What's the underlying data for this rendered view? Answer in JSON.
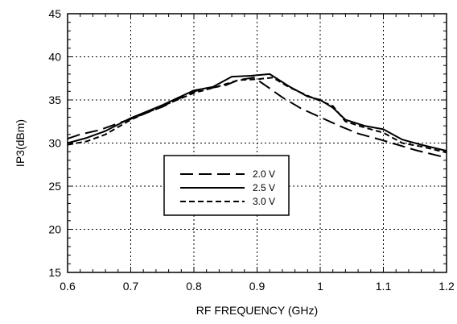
{
  "chart_data": {
    "type": "line",
    "title": "",
    "xlabel": "RF FREQUENCY (GHz)",
    "ylabel": "IP3(dBm)",
    "xlim": [
      0.6,
      1.2
    ],
    "ylim": [
      15,
      45
    ],
    "xticks": [
      0.6,
      0.7,
      0.8,
      0.9,
      1,
      1.1,
      1.2
    ],
    "yticks": [
      15,
      20,
      25,
      30,
      35,
      40,
      45
    ],
    "xtick_labels": [
      "0.6",
      "0.7",
      "0.8",
      "0.9",
      "1",
      "1.1",
      "1.2"
    ],
    "ytick_labels": [
      "15",
      "20",
      "25",
      "30",
      "35",
      "40",
      "45"
    ],
    "grid": true,
    "grid_style": "dotted",
    "legend_position": "center-left",
    "series": [
      {
        "name": "2.0 V",
        "style": "long-dash",
        "color": "#000000",
        "x": [
          0.6,
          0.62,
          0.65,
          0.7,
          0.75,
          0.8,
          0.85,
          0.87,
          0.895,
          0.915,
          0.94,
          0.97,
          1.0,
          1.03,
          1.06,
          1.1,
          1.15,
          1.2
        ],
        "y": [
          30.5,
          31.0,
          31.5,
          32.8,
          34.2,
          36.0,
          36.7,
          37.3,
          37.6,
          36.6,
          35.3,
          34.0,
          33.0,
          32.0,
          31.1,
          30.3,
          29.2,
          28.3
        ]
      },
      {
        "name": "2.5 V",
        "style": "solid",
        "color": "#000000",
        "x": [
          0.6,
          0.63,
          0.66,
          0.7,
          0.75,
          0.8,
          0.83,
          0.86,
          0.89,
          0.92,
          0.95,
          0.98,
          1.0,
          1.02,
          1.04,
          1.07,
          1.1,
          1.13,
          1.16,
          1.2
        ],
        "y": [
          30.0,
          30.6,
          31.4,
          32.9,
          34.4,
          36.1,
          36.5,
          37.7,
          37.8,
          38.0,
          36.6,
          35.4,
          35.0,
          34.1,
          32.7,
          32.0,
          31.6,
          30.4,
          29.8,
          29.1
        ]
      },
      {
        "name": "3.0 V",
        "style": "short-dash",
        "color": "#000000",
        "x": [
          0.6,
          0.63,
          0.66,
          0.7,
          0.75,
          0.8,
          0.84,
          0.87,
          0.9,
          0.925,
          0.95,
          0.98,
          1.0,
          1.02,
          1.04,
          1.07,
          1.1,
          1.13,
          1.16,
          1.2
        ],
        "y": [
          29.8,
          30.2,
          31.0,
          32.7,
          34.3,
          35.8,
          36.6,
          37.3,
          37.4,
          37.6,
          36.5,
          35.5,
          34.9,
          34.3,
          32.5,
          31.8,
          31.2,
          30.0,
          29.6,
          28.9
        ]
      }
    ]
  }
}
